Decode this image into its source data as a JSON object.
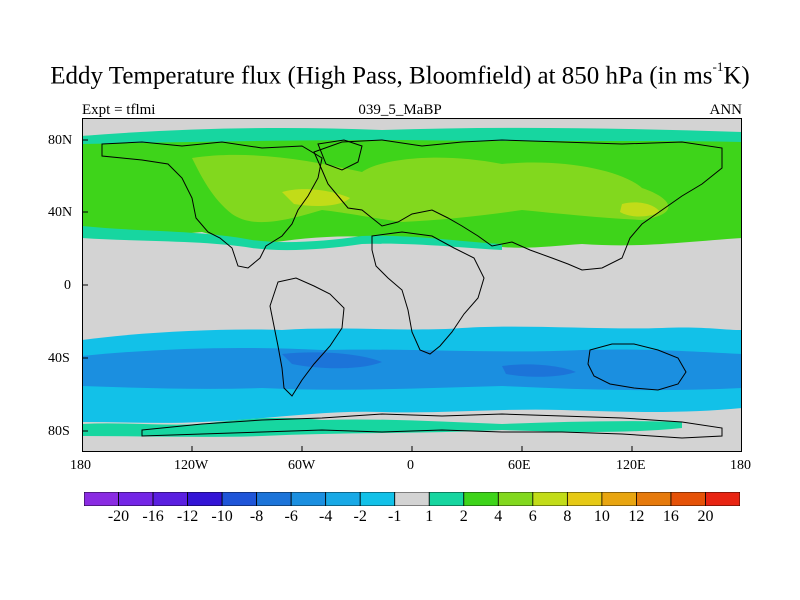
{
  "title_main": "Eddy Temperature flux (High Pass, Bloomfield) at 850 hPa (in ms",
  "title_sup": "-1",
  "title_end": "K)",
  "left_sub": "Expt = tflmi",
  "center_sub": "039_5_MaBP",
  "right_sub": "ANN",
  "lat_labels": [
    "80N",
    "40N",
    "0",
    "40S",
    "80S"
  ],
  "lon_labels": [
    "180",
    "120W",
    "60W",
    "0",
    "60E",
    "120E",
    "180"
  ],
  "colorbar": {
    "labels": [
      "-20",
      "-16",
      "-12",
      "-10",
      "-8",
      "-6",
      "-4",
      "-2",
      "-1",
      "1",
      "2",
      "4",
      "6",
      "8",
      "10",
      "12",
      "16",
      "20"
    ],
    "colors": [
      "#8a2be2",
      "#7426e6",
      "#5a1fe0",
      "#3314d6",
      "#1f55d8",
      "#1c74d9",
      "#1b8fe0",
      "#18a9e6",
      "#12c1e8",
      "#d3d3d3",
      "#17d6a0",
      "#3ed41a",
      "#82d81e",
      "#c2dc18",
      "#e6c914",
      "#e8a510",
      "#e67a0c",
      "#e55208",
      "#e82412"
    ]
  },
  "colors": {
    "neutral": "#d3d3d3",
    "land_line": "#000000"
  }
}
